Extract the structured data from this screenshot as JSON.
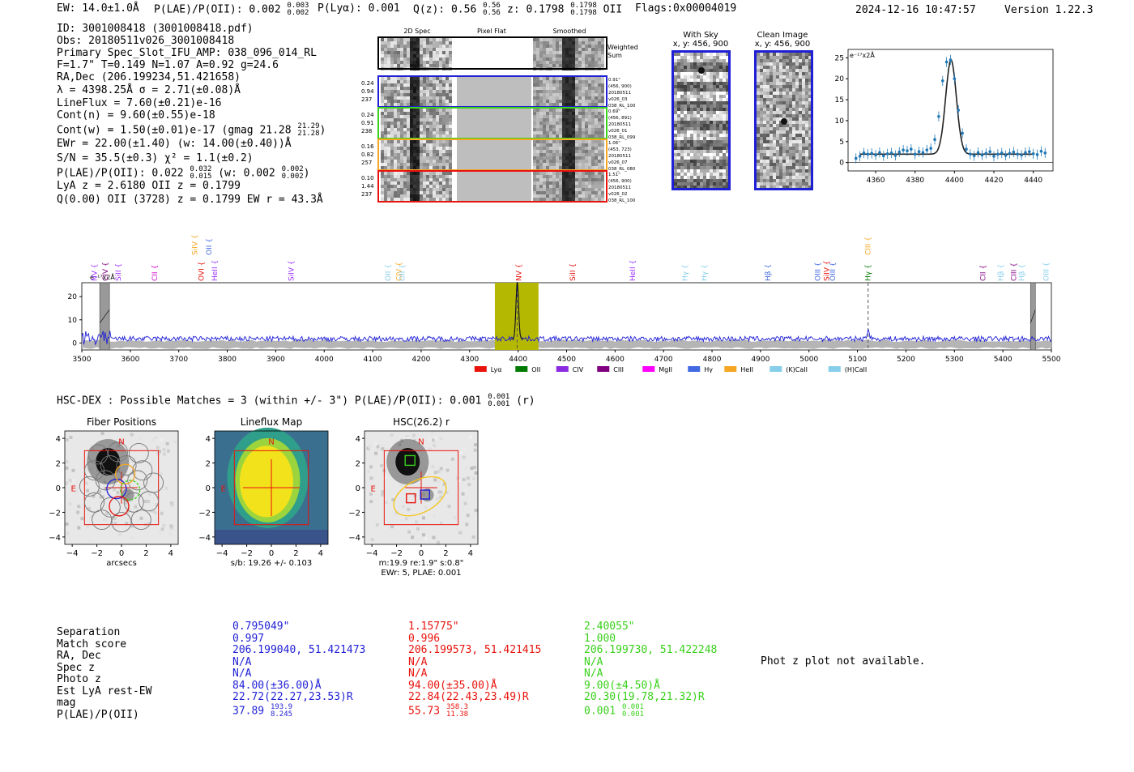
{
  "header": {
    "ew": "EW: 14.0±1.0Å",
    "plae_label": "P(LAE)/P(OII): 0.002",
    "plae_hi": "0.003",
    "plae_lo": "0.002",
    "plya": "P(Lyα): 0.001",
    "qz_label": "Q(z): 0.56",
    "qz_hi": "0.56",
    "qz_lo": "0.56",
    "z_label": "z: 0.1798",
    "z_hi": "0.1798",
    "z_lo": "0.1798",
    "z_line": "OII",
    "flags": "Flags:0x00004019",
    "datetime": "2024-12-16 10:47:57",
    "version": "Version 1.22.3"
  },
  "info": {
    "id": "ID: 3001008418 (3001008418.pdf)",
    "obs": "Obs: 20180511v026_3001008418",
    "primary": "Primary Spec_Slot_IFU_AMP: 038_096_014_RL",
    "fwhm": "F=1.7\"  T=0.149  N=1.07  A=0.92  g=24.6",
    "radec": "RA,Dec (206.199234,51.421658)",
    "lambda": "λ = 4398.25Å  σ = 2.71(±0.08)Å",
    "lineflux": "LineFlux = 7.60(±0.21)e-16",
    "contn": "Cont(n) = 9.60(±0.55)e-18",
    "contw_label": "Cont(w) = 1.50(±0.01)e-17 (gmag 21.28",
    "contw_hi": "21.29",
    "contw_lo": "21.28",
    "contw_close": ")",
    "ewr": "EWr = 22.00(±1.40) (w: 14.00(±0.40))Å",
    "sn": "S/N = 35.5(±0.3)  χ² = 1.1(±0.2)",
    "plae_label": "P(LAE)/P(OII): 0.022",
    "plae_hi": "0.032",
    "plae_lo": "0.015",
    "plae_w": " (w: 0.002",
    "plae_w_hi": "0.002",
    "plae_w_lo": "0.002",
    "plae_close": ")",
    "lya_z": "LyA z = 2.6180  OII z = 0.1799",
    "q_line": "Q(0.00) OII (3728) z = 0.1799  EW r = 43.3Å"
  },
  "fiber_panel": {
    "col_titles": [
      "2D Spec",
      "Pixel Flat",
      "Smoothed"
    ],
    "weighted_label": "Weighted Sum",
    "rows": [
      {
        "color": "#1f1fd6",
        "left": [
          "0.24",
          "0.94",
          "237"
        ],
        "right": [
          "0.91\"",
          "(456, 900)",
          "20180511",
          "v026_03",
          "038_RL_100"
        ]
      },
      {
        "color": "#39d11b",
        "left": [
          "0.24",
          "0.91",
          "238"
        ],
        "right": [
          "0.69\"",
          "(456, 891)",
          "20180511",
          "v026_01",
          "038_RL_099"
        ]
      },
      {
        "color": "#f5a623",
        "left": [
          "0.16",
          "0.82",
          "257"
        ],
        "right": [
          "1.06\"",
          "(453, 723)",
          "20180511",
          "v026_07",
          "038_RL_080"
        ]
      },
      {
        "color": "#e8130c",
        "left": [
          "0.10",
          "1.44",
          "237"
        ],
        "right": [
          "1.51\"",
          "(456, 900)",
          "20180511",
          "v026_02",
          "038_RL_100"
        ]
      }
    ]
  },
  "cutouts": {
    "with_sky_title": "With Sky",
    "with_sky_xy": "x, y: 456, 900",
    "clean_title": "Clean Image",
    "clean_xy": "x, y: 456, 900"
  },
  "zoom_chart_data": {
    "type": "line",
    "unit_label": "e⁻¹⁷x2Å",
    "xticks": [
      4360,
      4380,
      4400,
      4420,
      4440
    ],
    "yticks": [
      0,
      5,
      10,
      15,
      20,
      25
    ],
    "xlim": [
      4346,
      4450
    ],
    "ylim": [
      -2,
      27
    ],
    "fit": {
      "center": 4398.25,
      "sigma": 2.71,
      "amp": 22.5,
      "cont": 2.0
    },
    "points_x": [
      4350,
      4352,
      4354,
      4356,
      4358,
      4360,
      4362,
      4364,
      4366,
      4368,
      4370,
      4372,
      4374,
      4376,
      4378,
      4380,
      4382,
      4384,
      4386,
      4388,
      4390,
      4392,
      4394,
      4396,
      4398,
      4400,
      4402,
      4404,
      4406,
      4408,
      4410,
      4412,
      4414,
      4416,
      4418,
      4420,
      4422,
      4424,
      4426,
      4428,
      4430,
      4432,
      4434,
      4436,
      4438,
      4440,
      4442,
      4444,
      4446
    ],
    "points_y": [
      1.0,
      1.5,
      2.3,
      2.0,
      2.2,
      1.8,
      2.4,
      1.6,
      2.1,
      2.3,
      1.7,
      2.5,
      3.0,
      2.8,
      3.2,
      2.0,
      2.6,
      2.4,
      3.0,
      3.4,
      5.5,
      11.0,
      19.5,
      24.0,
      24.5,
      20.0,
      12.5,
      7.0,
      3.2,
      2.0,
      1.6,
      2.4,
      1.8,
      2.2,
      2.6,
      1.5,
      2.0,
      2.3,
      1.7,
      2.2,
      2.5,
      2.0,
      1.8,
      2.4,
      2.6,
      2.1,
      1.9,
      2.7,
      2.3
    ]
  },
  "chart_data": {
    "type": "line",
    "unit_label": "e⁻¹⁷x2Å",
    "xlim": [
      3500,
      5500
    ],
    "ylim": [
      -3,
      26
    ],
    "xticks": [
      3500,
      3600,
      3700,
      3800,
      3900,
      4000,
      4100,
      4200,
      4300,
      4400,
      4500,
      4600,
      4700,
      4800,
      4900,
      5000,
      5100,
      5200,
      5300,
      5400,
      5500
    ],
    "yticks": [
      0,
      10,
      20
    ],
    "highlight_band": [
      4352,
      4442
    ],
    "masked_regions": [
      [
        3537,
        3557
      ],
      [
        5457,
        5467
      ]
    ],
    "line_marker_dashed": [
      4398,
      5122
    ],
    "peaks": [
      {
        "x": 4398.25,
        "height": 24.5,
        "sigma": 2.71
      },
      {
        "x": 5122,
        "height": 4.0,
        "sigma": 2.5
      }
    ],
    "baseline": 1.8,
    "emission_lines": [
      {
        "name": "NV",
        "x": 3527,
        "row": 1,
        "color": "#9b30ff"
      },
      {
        "name": "CIV",
        "x": 3549,
        "row": 1,
        "color": "#800080"
      },
      {
        "name": "SiII",
        "x": 3576,
        "row": 1,
        "color": "#9b30ff"
      },
      {
        "name": "CII",
        "x": 3651,
        "row": 1,
        "color": "#cc00cc"
      },
      {
        "name": "OVI",
        "x": 3747,
        "row": 1,
        "color": "#e8130c"
      },
      {
        "name": "HeII",
        "x": 3775,
        "row": 1,
        "color": "#9b30ff"
      },
      {
        "name": "SiIV",
        "x": 3734,
        "row": 0,
        "color": "#f5a623"
      },
      {
        "name": "OII",
        "x": 3763,
        "row": 0,
        "color": "#4169e1"
      },
      {
        "name": "SiIV",
        "x": 3933,
        "row": 1,
        "color": "#9b30ff"
      },
      {
        "name": "OII",
        "x": 4132,
        "row": 1,
        "color": "#87ceeb"
      },
      {
        "name": "CIV",
        "x": 4155,
        "row": 1,
        "color": "#f5a623"
      },
      {
        "name": "OII",
        "x": 4162,
        "row": 1,
        "color": "#87ceeb"
      },
      {
        "name": "NV",
        "x": 4402,
        "row": 1,
        "color": "#e8130c"
      },
      {
        "name": "SiII",
        "x": 4513,
        "row": 1,
        "color": "#e8130c"
      },
      {
        "name": "HeII",
        "x": 4637,
        "row": 1,
        "color": "#9b30ff"
      },
      {
        "name": "Hγ",
        "x": 4745,
        "row": 1,
        "color": "#87ceeb"
      },
      {
        "name": "Hγ",
        "x": 4785,
        "row": 1,
        "color": "#87ceeb"
      },
      {
        "name": "Hβ",
        "x": 4916,
        "row": 1,
        "color": "#4169e1"
      },
      {
        "name": "OIII",
        "x": 5019,
        "row": 1,
        "color": "#4169e1"
      },
      {
        "name": "SiIV",
        "x": 5037,
        "row": 1,
        "color": "#e8130c"
      },
      {
        "name": "OIII",
        "x": 5050,
        "row": 1,
        "color": "#4169e1"
      },
      {
        "name": "Hγ",
        "x": 5122,
        "row": 1,
        "color": "#007a00"
      },
      {
        "name": "CIII",
        "x": 5122,
        "row": 0,
        "color": "#f5a623"
      },
      {
        "name": "CII",
        "x": 5360,
        "row": 1,
        "color": "#800080"
      },
      {
        "name": "Hβ",
        "x": 5396,
        "row": 1,
        "color": "#87ceeb"
      },
      {
        "name": "CIII",
        "x": 5423,
        "row": 1,
        "color": "#800080"
      },
      {
        "name": "Hβ",
        "x": 5440,
        "row": 1,
        "color": "#87ceeb"
      },
      {
        "name": "OIII",
        "x": 5490,
        "row": 1,
        "color": "#87ceeb"
      }
    ],
    "legend": [
      {
        "name": "Lyα",
        "color": "#e8130c"
      },
      {
        "name": "OII",
        "color": "#007a00"
      },
      {
        "name": "CIV",
        "color": "#8a2be2"
      },
      {
        "name": "CIII",
        "color": "#800080"
      },
      {
        "name": "MgII",
        "color": "#ff00ff"
      },
      {
        "name": "Hγ",
        "color": "#4169e1"
      },
      {
        "name": "HeII",
        "color": "#f5a623"
      },
      {
        "name": "(K)CaII",
        "color": "#87ceeb"
      },
      {
        "name": "(H)CaII",
        "color": "#87ceeb"
      }
    ]
  },
  "hsc": {
    "title": "HSC-DEX : Possible Matches = 3 (within +/- 3\")  P(LAE)/P(OII): 0.001",
    "title_hi": "0.001",
    "title_lo": "0.001",
    "title_tail": " (r)",
    "panels": [
      {
        "title": "Fiber Positions",
        "xlabel": "arcsecs",
        "note": ""
      },
      {
        "title": "Lineflux Map",
        "xlabel": "s/b: 19.26 +/- 0.103",
        "note": ""
      },
      {
        "title": "HSC(26.2) r",
        "xlabel": "m:19.9  re:1.9\"  s:0.8\"",
        "note": "EWr: 5, PLAE: 0.001"
      }
    ],
    "ticks": [
      "−4",
      "−2",
      "0",
      "2",
      "4"
    ],
    "n_label": "N",
    "e_label": "E"
  },
  "match_table": {
    "labels": [
      "Separation",
      "Match score",
      "RA, Dec",
      "Spec z",
      "Photo z",
      "Est LyA rest-EW",
      "mag",
      "P(LAE)/P(OII)"
    ],
    "columns": [
      {
        "color": "#1f1fd6",
        "values": [
          "0.795049\"",
          "0.997",
          "206.199040, 51.421473",
          "N/A",
          "N/A",
          "84.00(±36.00)Å",
          "22.72(22.27,23.53)R"
        ],
        "plae": "37.89",
        "plae_hi": "193.9",
        "plae_lo": "8.245"
      },
      {
        "color": "#e8130c",
        "values": [
          "1.15775\"",
          "0.996",
          "206.199573, 51.421415",
          "N/A",
          "N/A",
          "94.00(±35.00)Å",
          "22.84(22.43,23.49)R"
        ],
        "plae": "55.73",
        "plae_hi": "358.3",
        "plae_lo": "11.38"
      },
      {
        "color": "#39d11b",
        "values": [
          "2.40055\"",
          "1.000",
          "206.199730, 51.422248",
          "N/A",
          "N/A",
          "9.00(±4.50)Å",
          "20.30(19.78,21.32)R"
        ],
        "plae": "0.001",
        "plae_hi": "0.001",
        "plae_lo": "0.001"
      }
    ],
    "phot_z_note": "Phot z plot not available."
  }
}
